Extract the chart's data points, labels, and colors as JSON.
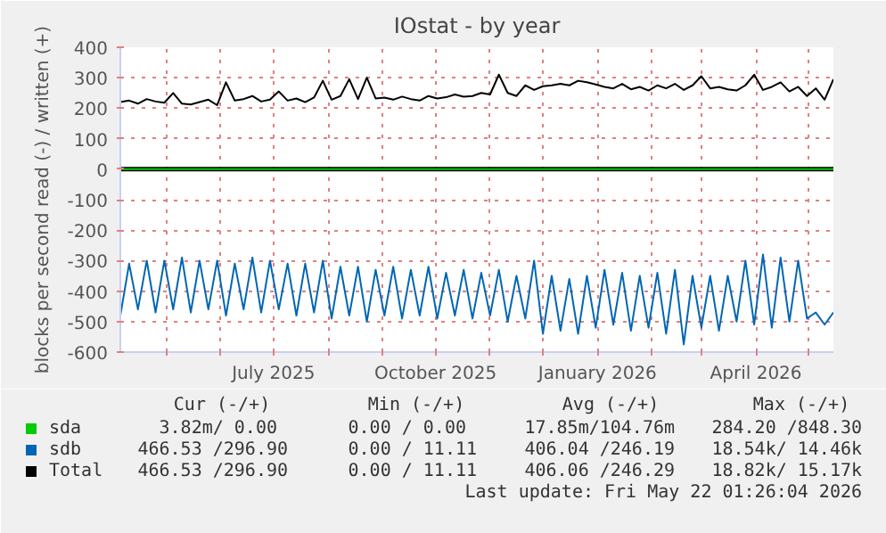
{
  "chart_data": {
    "type": "line",
    "title": "IOstat - by year",
    "ylabel": "blocks per second read (-) / written (+)",
    "x": [
      "2025-04-05",
      "2025-04-10",
      "2025-04-15",
      "2025-04-20",
      "2025-04-25",
      "2025-04-30",
      "2025-05-05",
      "2025-05-10",
      "2025-05-15",
      "2025-05-20",
      "2025-05-25",
      "2025-05-30",
      "2025-06-04",
      "2025-06-09",
      "2025-06-14",
      "2025-06-19",
      "2025-06-24",
      "2025-06-29",
      "2025-07-04",
      "2025-07-09",
      "2025-07-14",
      "2025-07-19",
      "2025-07-24",
      "2025-07-29",
      "2025-08-03",
      "2025-08-08",
      "2025-08-13",
      "2025-08-18",
      "2025-08-23",
      "2025-08-28",
      "2025-09-02",
      "2025-09-07",
      "2025-09-12",
      "2025-09-17",
      "2025-09-22",
      "2025-09-27",
      "2025-10-02",
      "2025-10-07",
      "2025-10-12",
      "2025-10-17",
      "2025-10-22",
      "2025-10-27",
      "2025-11-01",
      "2025-11-06",
      "2025-11-11",
      "2025-11-16",
      "2025-11-21",
      "2025-11-26",
      "2025-12-01",
      "2025-12-06",
      "2025-12-11",
      "2025-12-16",
      "2025-12-21",
      "2025-12-26",
      "2025-12-31",
      "2026-01-05",
      "2026-01-10",
      "2026-01-15",
      "2026-01-20",
      "2026-01-25",
      "2026-01-30",
      "2026-02-04",
      "2026-02-09",
      "2026-02-14",
      "2026-02-19",
      "2026-02-24",
      "2026-03-01",
      "2026-03-06",
      "2026-03-11",
      "2026-03-16",
      "2026-03-21",
      "2026-03-26",
      "2026-03-31",
      "2026-04-05",
      "2026-04-10",
      "2026-04-15",
      "2026-04-20",
      "2026-04-25",
      "2026-04-30",
      "2026-05-05",
      "2026-05-10",
      "2026-05-15"
    ],
    "series": [
      {
        "name": "sda",
        "color": "#00cc00",
        "values": [
          0,
          0,
          0,
          0,
          0,
          0,
          0,
          0,
          0,
          0,
          0,
          0,
          0,
          0,
          0,
          0,
          0,
          0,
          0,
          0,
          0,
          0,
          0,
          0,
          0,
          0,
          0,
          0,
          0,
          0,
          0,
          0,
          0,
          0,
          0,
          0,
          0,
          0,
          0,
          0,
          0,
          0,
          0,
          0,
          0,
          0,
          0,
          0,
          0,
          0,
          0,
          0,
          0,
          0,
          0,
          0,
          0,
          0,
          0,
          0,
          0,
          0,
          0,
          0,
          0,
          0,
          0,
          0,
          0,
          0,
          0,
          0,
          0,
          0,
          0,
          0,
          0,
          0,
          0,
          0,
          0,
          0
        ]
      },
      {
        "name": "sdb",
        "color": "#0066b3",
        "values": [
          -480,
          -310,
          -460,
          -300,
          -470,
          -300,
          -460,
          -290,
          -470,
          -300,
          -460,
          -300,
          -480,
          -310,
          -460,
          -290,
          -470,
          -300,
          -460,
          -310,
          -480,
          -310,
          -470,
          -300,
          -490,
          -320,
          -480,
          -320,
          -500,
          -330,
          -480,
          -320,
          -490,
          -330,
          -480,
          -320,
          -490,
          -340,
          -480,
          -330,
          -490,
          -340,
          -480,
          -330,
          -500,
          -350,
          -490,
          -300,
          -540,
          -350,
          -530,
          -360,
          -540,
          -350,
          -520,
          -330,
          -510,
          -340,
          -530,
          -350,
          -520,
          -340,
          -540,
          -330,
          -575,
          -350,
          -520,
          -350,
          -530,
          -350,
          -500,
          -300,
          -510,
          -280,
          -520,
          -290,
          -500,
          -300,
          -490,
          -470,
          -510,
          -470
        ]
      },
      {
        "name": "Total",
        "color": "#000000",
        "values": [
          220,
          225,
          215,
          230,
          222,
          218,
          250,
          215,
          212,
          220,
          228,
          210,
          285,
          225,
          230,
          240,
          222,
          228,
          255,
          225,
          232,
          220,
          235,
          290,
          228,
          240,
          295,
          230,
          300,
          232,
          235,
          228,
          238,
          230,
          225,
          240,
          232,
          236,
          245,
          238,
          240,
          250,
          245,
          310,
          250,
          240,
          275,
          260,
          272,
          275,
          280,
          275,
          290,
          285,
          278,
          270,
          265,
          280,
          262,
          270,
          258,
          275,
          265,
          280,
          260,
          275,
          305,
          265,
          270,
          262,
          258,
          275,
          310,
          260,
          270,
          285,
          255,
          270,
          240,
          265,
          228,
          295
        ]
      }
    ],
    "xlim": [
      "2025-04-05",
      "2026-05-15"
    ],
    "xticks": [
      {
        "value": "2025-05-01",
        "label": null
      },
      {
        "value": "2025-06-01",
        "label": null
      },
      {
        "value": "2025-07-01",
        "label": "July 2025"
      },
      {
        "value": "2025-08-01",
        "label": null
      },
      {
        "value": "2025-09-01",
        "label": null
      },
      {
        "value": "2025-10-01",
        "label": "October 2025"
      },
      {
        "value": "2025-11-01",
        "label": null
      },
      {
        "value": "2025-12-01",
        "label": null
      },
      {
        "value": "2026-01-01",
        "label": "January 2026"
      },
      {
        "value": "2026-02-01",
        "label": null
      },
      {
        "value": "2026-03-01",
        "label": null
      },
      {
        "value": "2026-04-01",
        "label": "April 2026"
      },
      {
        "value": "2026-05-01",
        "label": null
      }
    ],
    "ylim": [
      -600,
      400
    ],
    "yticks": [
      -600,
      -500,
      -400,
      -300,
      -200,
      -100,
      0,
      100,
      200,
      300,
      400
    ],
    "ref_lines": [
      {
        "axis": "y",
        "value": 0,
        "color": "#000000"
      }
    ],
    "grid": true,
    "legend": "bottom",
    "annotations": [
      "Cur (-/+)",
      "Min (-/+)",
      "Avg (-/+)",
      "Max (-/+)",
      "3.82m/  0.00",
      "0.00 /  0.00",
      "17.85m/104.76m",
      "284.20 /848.30",
      "466.53 /296.90",
      "0.00 / 11.11",
      "406.04 /246.19",
      "18.54k/ 14.46k",
      "466.53 /296.90",
      "0.00 / 11.11",
      "406.06 /246.29",
      "18.82k/ 15.17k",
      "Last update: Fri May 22 01:26:04 2026"
    ]
  }
}
